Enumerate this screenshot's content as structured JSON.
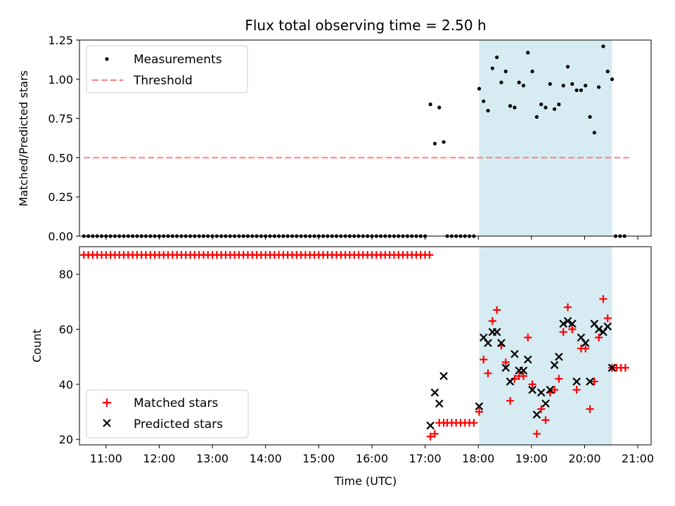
{
  "chart_data": [
    {
      "type": "scatter",
      "title": "Flux total observing time = 2.50 h",
      "ylabel": "Matched/Predicted stars",
      "xlabel": "",
      "xlim": [
        "10:30",
        "21:15"
      ],
      "ylim": [
        0,
        1.25
      ],
      "yticks": [
        "0.00",
        "0.25",
        "0.50",
        "0.75",
        "1.00",
        "1.25"
      ],
      "ytick_values": [
        0,
        0.25,
        0.5,
        0.75,
        1.0,
        1.25
      ],
      "legend": {
        "placement": "top-left",
        "entries": [
          "Measurements",
          "Threshold"
        ]
      },
      "highlight_span": {
        "start": "18:01",
        "end": "20:31",
        "color": "#add8e6"
      },
      "threshold": {
        "name": "Threshold",
        "y": 0.5,
        "x_start": "10:35",
        "x_end": "20:50",
        "color": "#ff7f7f"
      },
      "series": [
        {
          "name": "Measurements",
          "color": "#000000",
          "zero_runs": [
            {
              "start": "10:35",
              "end": "17:00",
              "step_minutes": 5
            },
            {
              "start": "17:25",
              "end": "17:55",
              "step_minutes": 5
            },
            {
              "start": "20:35",
              "end": "20:45",
              "step_minutes": 5
            }
          ],
          "points": [
            [
              "17:06",
              0.84
            ],
            [
              "17:11",
              0.59
            ],
            [
              "17:16",
              0.82
            ],
            [
              "17:21",
              0.6
            ],
            [
              "18:01",
              0.94
            ],
            [
              "18:06",
              0.86
            ],
            [
              "18:11",
              0.8
            ],
            [
              "18:16",
              1.07
            ],
            [
              "18:21",
              1.14
            ],
            [
              "18:26",
              0.98
            ],
            [
              "18:31",
              1.05
            ],
            [
              "18:36",
              0.83
            ],
            [
              "18:41",
              0.82
            ],
            [
              "18:46",
              0.98
            ],
            [
              "18:51",
              0.96
            ],
            [
              "18:56",
              1.17
            ],
            [
              "19:01",
              1.05
            ],
            [
              "19:06",
              0.76
            ],
            [
              "19:11",
              0.84
            ],
            [
              "19:16",
              0.82
            ],
            [
              "19:21",
              0.97
            ],
            [
              "19:26",
              0.81
            ],
            [
              "19:31",
              0.84
            ],
            [
              "19:36",
              0.96
            ],
            [
              "19:41",
              1.08
            ],
            [
              "19:46",
              0.97
            ],
            [
              "19:51",
              0.93
            ],
            [
              "19:56",
              0.93
            ],
            [
              "20:01",
              0.96
            ],
            [
              "20:06",
              0.76
            ],
            [
              "20:11",
              0.66
            ],
            [
              "20:16",
              0.95
            ],
            [
              "20:21",
              1.21
            ],
            [
              "20:26",
              1.05
            ],
            [
              "20:31",
              1.0
            ]
          ]
        }
      ]
    },
    {
      "type": "scatter",
      "title": "",
      "ylabel": "Count",
      "xlabel": "Time (UTC)",
      "xlim": [
        "10:30",
        "21:15"
      ],
      "ylim": [
        18,
        90
      ],
      "yticks": [
        "20",
        "40",
        "60",
        "80"
      ],
      "ytick_values": [
        20,
        40,
        60,
        80
      ],
      "xticks": [
        "11:00",
        "12:00",
        "13:00",
        "14:00",
        "15:00",
        "16:00",
        "17:00",
        "18:00",
        "19:00",
        "20:00",
        "21:00"
      ],
      "legend": {
        "placement": "bottom-left",
        "entries": [
          "Matched stars",
          "Predicted stars"
        ]
      },
      "highlight_span": {
        "start": "18:01",
        "end": "20:31",
        "color": "#add8e6"
      },
      "series": [
        {
          "name": "Matched stars",
          "color": "#ff0000",
          "marker": "plus",
          "runs": [
            {
              "start": "10:35",
              "end": "17:05",
              "step_minutes": 5,
              "value": 87
            },
            {
              "start": "17:25",
              "end": "17:55",
              "step_minutes": 5,
              "value": 26
            },
            {
              "start": "20:36",
              "end": "20:46",
              "step_minutes": 5,
              "value": 46
            }
          ],
          "points": [
            [
              "17:06",
              21
            ],
            [
              "17:11",
              22
            ],
            [
              "17:16",
              26
            ],
            [
              "17:21",
              26
            ],
            [
              "18:01",
              30
            ],
            [
              "18:06",
              49
            ],
            [
              "18:11",
              44
            ],
            [
              "18:16",
              63
            ],
            [
              "18:21",
              67
            ],
            [
              "18:26",
              54
            ],
            [
              "18:31",
              48
            ],
            [
              "18:36",
              34
            ],
            [
              "18:41",
              42
            ],
            [
              "18:46",
              43
            ],
            [
              "18:51",
              43
            ],
            [
              "18:56",
              57
            ],
            [
              "19:01",
              40
            ],
            [
              "19:06",
              22
            ],
            [
              "19:11",
              31
            ],
            [
              "19:16",
              27
            ],
            [
              "19:21",
              37
            ],
            [
              "19:26",
              38
            ],
            [
              "19:31",
              42
            ],
            [
              "19:36",
              59
            ],
            [
              "19:41",
              68
            ],
            [
              "19:46",
              60
            ],
            [
              "19:51",
              38
            ],
            [
              "19:56",
              53
            ],
            [
              "20:01",
              53
            ],
            [
              "20:06",
              31
            ],
            [
              "20:11",
              41
            ],
            [
              "20:16",
              57
            ],
            [
              "20:21",
              71
            ],
            [
              "20:26",
              64
            ],
            [
              "20:31",
              46
            ]
          ]
        },
        {
          "name": "Predicted stars",
          "color": "#000000",
          "marker": "x",
          "points": [
            [
              "17:06",
              25
            ],
            [
              "17:11",
              37
            ],
            [
              "17:16",
              33
            ],
            [
              "17:21",
              43
            ],
            [
              "18:01",
              32
            ],
            [
              "18:06",
              57
            ],
            [
              "18:11",
              55
            ],
            [
              "18:16",
              59
            ],
            [
              "18:21",
              59
            ],
            [
              "18:26",
              55
            ],
            [
              "18:31",
              46
            ],
            [
              "18:36",
              41
            ],
            [
              "18:41",
              51
            ],
            [
              "18:46",
              45
            ],
            [
              "18:51",
              45
            ],
            [
              "18:56",
              49
            ],
            [
              "19:01",
              38
            ],
            [
              "19:06",
              29
            ],
            [
              "19:11",
              37
            ],
            [
              "19:16",
              33
            ],
            [
              "19:21",
              38
            ],
            [
              "19:26",
              47
            ],
            [
              "19:31",
              50
            ],
            [
              "19:36",
              62
            ],
            [
              "19:41",
              63
            ],
            [
              "19:46",
              62
            ],
            [
              "19:51",
              41
            ],
            [
              "19:56",
              57
            ],
            [
              "20:01",
              55
            ],
            [
              "20:06",
              41
            ],
            [
              "20:11",
              62
            ],
            [
              "20:16",
              60
            ],
            [
              "20:21",
              59
            ],
            [
              "20:26",
              61
            ],
            [
              "20:31",
              46
            ]
          ]
        }
      ]
    }
  ]
}
